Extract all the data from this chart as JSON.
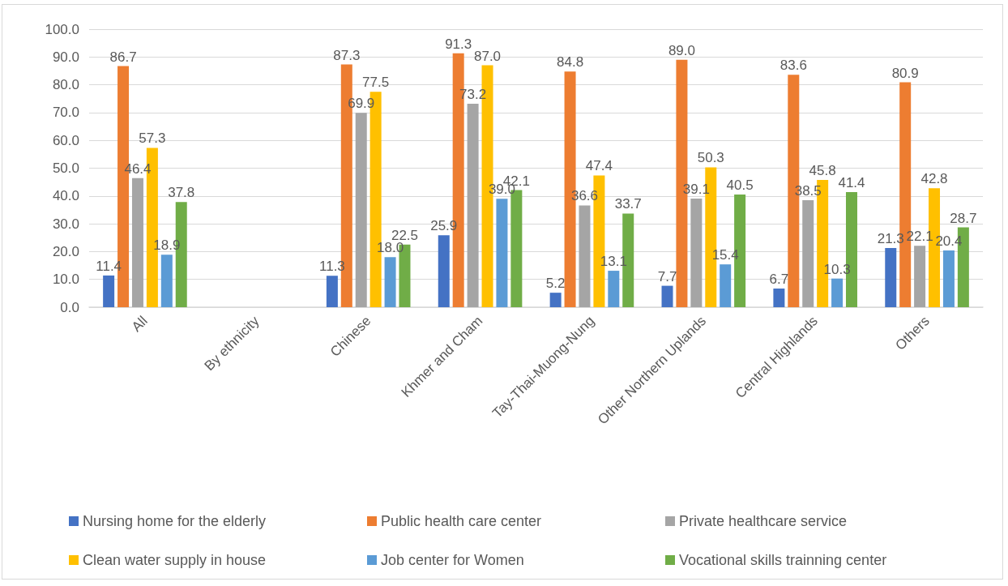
{
  "chart_data": {
    "type": "bar",
    "categories": [
      "All",
      "By ethnicity",
      "Chinese",
      "Khmer and Cham",
      "Tay-Thai-Muong-Nung",
      "Other Northern Uplands",
      "Central Highlands",
      "Others"
    ],
    "ylim": [
      0,
      100
    ],
    "yticks": [
      {
        "value": 0,
        "label": "0.0"
      },
      {
        "value": 10,
        "label": "10.0"
      },
      {
        "value": 20,
        "label": "20.0"
      },
      {
        "value": 30,
        "label": "30.0"
      },
      {
        "value": 40,
        "label": "40.0"
      },
      {
        "value": 50,
        "label": "50.0"
      },
      {
        "value": 60,
        "label": "60.0"
      },
      {
        "value": 70,
        "label": "70.0"
      },
      {
        "value": 80,
        "label": "80.0"
      },
      {
        "value": 90,
        "label": "90.0"
      },
      {
        "value": 100,
        "label": "100.0"
      }
    ],
    "grid": "y",
    "legend": "bottom",
    "series": [
      {
        "name": "Nursing home for the elderly",
        "color": "#4472c4",
        "values": [
          11.4,
          null,
          11.3,
          25.9,
          5.2,
          7.7,
          6.7,
          21.3
        ],
        "value_labels": [
          "11.4",
          null,
          "11.3",
          "25.9",
          "5.2",
          "7.7",
          "6.7",
          "21.3"
        ]
      },
      {
        "name": "Public health care center",
        "color": "#ed7d31",
        "values": [
          86.7,
          null,
          87.3,
          91.3,
          84.8,
          89.0,
          83.6,
          80.9
        ],
        "value_labels": [
          "86.7",
          null,
          "87.3",
          "91.3",
          "84.8",
          "89.0",
          "83.6",
          "80.9"
        ]
      },
      {
        "name": "Private healthcare service",
        "color": "#a5a5a5",
        "values": [
          46.4,
          null,
          69.9,
          73.2,
          36.6,
          39.1,
          38.5,
          22.1
        ],
        "value_labels": [
          "46.4",
          null,
          "69.9",
          "73.2",
          "36.6",
          "39.1",
          "38.5",
          "22.1"
        ]
      },
      {
        "name": "Clean water supply in house",
        "color": "#ffc000",
        "values": [
          57.3,
          null,
          77.5,
          87.0,
          47.4,
          50.3,
          45.8,
          42.8
        ],
        "value_labels": [
          "57.3",
          null,
          "77.5",
          "87.0",
          "47.4",
          "50.3",
          "45.8",
          "42.8"
        ]
      },
      {
        "name": "Job center for Women",
        "color": "#5b9bd5",
        "values": [
          18.9,
          null,
          18.0,
          39.0,
          13.1,
          15.4,
          10.3,
          20.4
        ],
        "value_labels": [
          "18.9",
          null,
          "18.0",
          "39.0",
          "13.1",
          "15.4",
          "10.3",
          "20.4"
        ]
      },
      {
        "name": "Vocational skills trainning center",
        "color": "#70ad47",
        "values": [
          37.8,
          null,
          22.5,
          42.1,
          33.7,
          40.5,
          41.4,
          28.7
        ],
        "value_labels": [
          "37.8",
          null,
          "22.5",
          "42.1",
          "33.7",
          "40.5",
          "41.4",
          "28.7"
        ]
      }
    ]
  }
}
